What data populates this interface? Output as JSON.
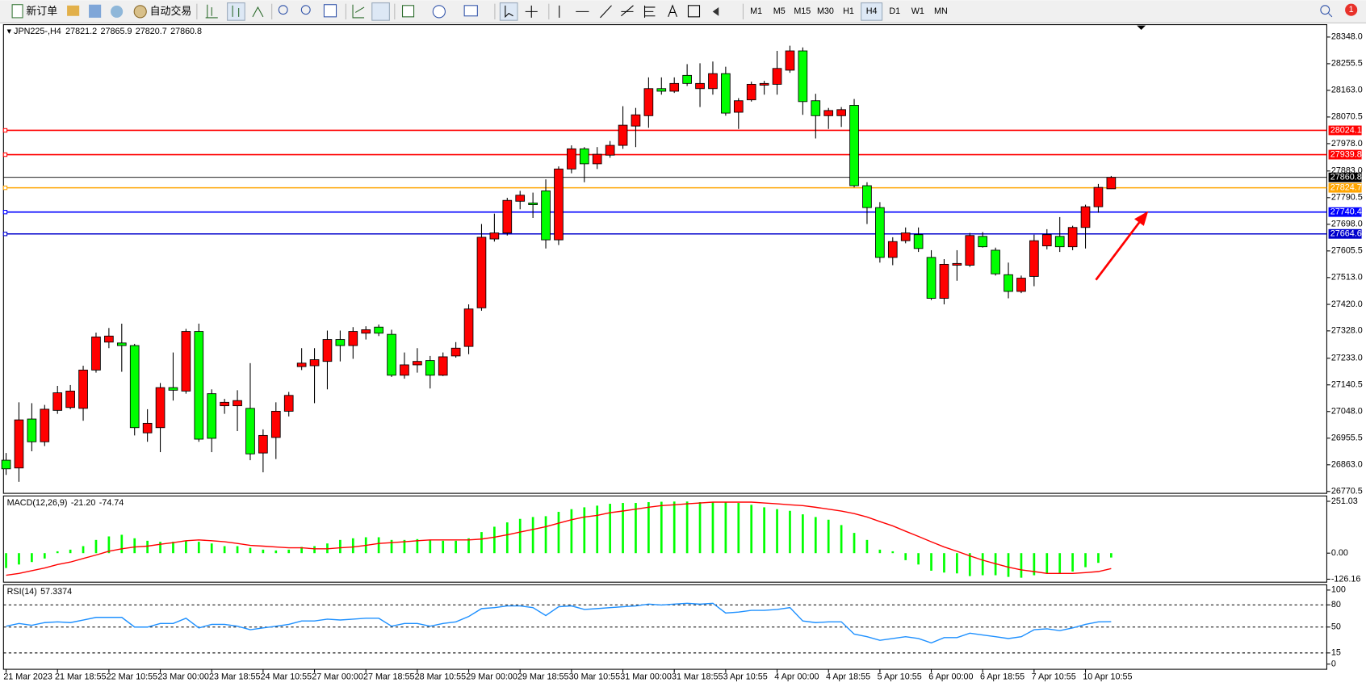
{
  "toolbar": {
    "new_order": "新订单",
    "auto_trading": "自动交易",
    "timeframes": [
      "M1",
      "M5",
      "M15",
      "M30",
      "H1",
      "H4",
      "D1",
      "W1",
      "MN"
    ],
    "notifications": 1
  },
  "chart_data": [
    {
      "type": "candlestick",
      "title": "JPN225-,H4",
      "categories": [
        "21 Mar 2023",
        null,
        null,
        null,
        "21 Mar 18:55",
        null,
        null,
        null,
        "22 Mar 10:55",
        null,
        null,
        null,
        "23 Mar 00:00",
        null,
        null,
        null,
        "23 Mar 18:55",
        null,
        null,
        null,
        "24 Mar 10:55",
        null,
        null,
        null,
        "27 Mar 00:00",
        null,
        null,
        null,
        "27 Mar 18:55",
        null,
        null,
        null,
        "28 Mar 10:55",
        null,
        null,
        null,
        "29 Mar 00:00",
        null,
        null,
        null,
        "29 Mar 18:55",
        null,
        null,
        null,
        "30 Mar 10:55",
        null,
        null,
        null,
        "31 Mar 00:00",
        null,
        null,
        null,
        "31 Mar 18:55",
        null,
        null,
        null,
        "3 Apr 10:55",
        null,
        null,
        null,
        "4 Apr 00:00",
        null,
        null,
        null,
        "4 Apr 18:55",
        null,
        null,
        null,
        "5 Apr 10:55",
        null,
        null,
        null,
        "6 Apr 00:00",
        null,
        null,
        null,
        "6 Apr 18:55",
        null,
        null,
        null,
        "7 Apr 10:55",
        null,
        null,
        null,
        "10 Apr 10:55",
        null,
        null
      ],
      "open": [
        26879,
        26852,
        27022,
        26943,
        27052,
        27062,
        27059,
        27192,
        27289,
        27286,
        27277,
        26974,
        26992,
        27131,
        27119,
        27326,
        27110,
        27068,
        27068,
        27059,
        26904,
        26958,
        27049,
        27204,
        27207,
        27222,
        27298,
        27277,
        27320,
        27341,
        27316,
        27174,
        27210,
        27225,
        27174,
        27241,
        27274,
        27408,
        27647,
        27668,
        27778,
        27772,
        27814,
        27644,
        27890,
        27960,
        27908,
        27938,
        27972,
        28039,
        28075,
        28169,
        28160,
        28215,
        28169,
        28169,
        28221,
        28087,
        28130,
        28181,
        28184,
        28233,
        28300,
        28127,
        28075,
        28075,
        28111,
        27832,
        27756,
        27583,
        27641,
        27662,
        27583,
        27441,
        27556,
        27556,
        27656,
        27608,
        27523,
        27465,
        27517,
        27623,
        27656,
        27620,
        27687,
        27759,
        27821.2
      ],
      "high": [
        26904,
        27080,
        27077,
        27071,
        27137,
        27140,
        27207,
        27322,
        27338,
        27353,
        27283,
        27056,
        27147,
        27253,
        27335,
        27353,
        27125,
        27092,
        27122,
        27216,
        26986,
        27080,
        27116,
        27268,
        27268,
        27329,
        27329,
        27341,
        27344,
        27350,
        27332,
        27253,
        27268,
        27241,
        27253,
        27289,
        27420,
        27699,
        27735,
        27790,
        27814,
        27808,
        27854,
        27899,
        27972,
        27966,
        27966,
        27987,
        28108,
        28102,
        28208,
        28208,
        28208,
        28254,
        28257,
        28263,
        28245,
        28136,
        28193,
        28196,
        28300,
        28318,
        28312,
        28151,
        28102,
        28105,
        28133,
        27844,
        27775,
        27653,
        27687,
        27687,
        27608,
        27577,
        27608,
        27668,
        27671,
        27617,
        27565,
        27520,
        27662,
        27681,
        27723,
        27693,
        27766,
        27838,
        27865.9
      ],
      "low": [
        26828,
        26804,
        26910,
        26928,
        27040,
        27056,
        27016,
        27183,
        27268,
        27186,
        26965,
        26943,
        26907,
        27086,
        27110,
        26943,
        26907,
        27040,
        26980,
        26879,
        26837,
        26883,
        27031,
        27192,
        27077,
        27125,
        27222,
        27231,
        27298,
        27310,
        27168,
        27162,
        27183,
        27128,
        27171,
        27235,
        27247,
        27398,
        27638,
        27659,
        27750,
        27720,
        27614,
        27626,
        27875,
        27844,
        27890,
        27929,
        27960,
        27966,
        28033,
        28148,
        28154,
        28178,
        28105,
        28148,
        28075,
        28029,
        28124,
        28148,
        28148,
        28224,
        28078,
        27996,
        28029,
        28036,
        27826,
        27699,
        27565,
        27556,
        27632,
        27602,
        27435,
        27420,
        27502,
        27550,
        27617,
        27520,
        27441,
        27459,
        27483,
        27611,
        27602,
        27608,
        27614,
        27738,
        27820.7
      ],
      "close": [
        26849,
        27019,
        26943,
        27056,
        27113,
        27119,
        27192,
        27307,
        27310,
        27277,
        26992,
        27007,
        27131,
        27122,
        27326,
        26952,
        26955,
        27080,
        27086,
        26901,
        26965,
        27049,
        27104,
        27216,
        27228,
        27298,
        27277,
        27326,
        27332,
        27320,
        27174,
        27210,
        27222,
        27174,
        27238,
        27268,
        27404,
        27653,
        27668,
        27781,
        27799,
        27766,
        27644,
        27890,
        27960,
        27908,
        27941,
        27972,
        28042,
        28078,
        28169,
        28160,
        28187,
        28187,
        28187,
        28221,
        28084,
        28127,
        28184,
        28187,
        28239,
        28300,
        28124,
        28075,
        28093,
        28096,
        27832,
        27756,
        27583,
        27638,
        27668,
        27614,
        27441,
        27559,
        27562,
        27659,
        27620,
        27526,
        27465,
        27511,
        27641,
        27662,
        27620,
        27687,
        27759,
        27826,
        27860.8
      ],
      "up_color": "#ff0000",
      "down_color": "#00ff00",
      "hlines": [
        {
          "value": 28024.1,
          "color": "#ff0000"
        },
        {
          "value": 27939.8,
          "color": "#ff0000"
        },
        {
          "value": 27824.7,
          "color": "#ffa500"
        },
        {
          "value": 27740.4,
          "color": "#0000ff"
        },
        {
          "value": 27664.6,
          "color": "#0000cd"
        }
      ],
      "ylim": [
        26764,
        28391
      ],
      "yticks": [
        {
          "value": 28348,
          "label": "28348.0"
        },
        28255.5,
        {
          "value": 28163,
          "label": "28163.0"
        },
        28070.5,
        {
          "value": 27978,
          "label": "27978.0"
        },
        {
          "value": 27883,
          "label": "27883.0"
        },
        27790.5,
        {
          "value": 27698,
          "label": "27698.0"
        },
        27605.5,
        {
          "value": 27513,
          "label": "27513.0"
        },
        {
          "value": 27420,
          "label": "27420.0"
        },
        {
          "value": 27328,
          "label": "27328.0"
        },
        {
          "value": 27233,
          "label": "27233.0"
        },
        27140.5,
        {
          "value": 27048,
          "label": "27048.0"
        },
        26955.5,
        {
          "value": 26863,
          "label": "26863.0"
        },
        26770.5
      ]
    },
    {
      "type": "macd",
      "title": "MACD(12,26,9)",
      "current_labels": [
        "-21.20",
        "-74.74"
      ],
      "series": [
        {
          "color": "#00ff00",
          "values": [
            -72,
            -55,
            -43,
            -26,
            9,
            17,
            34,
            64,
            81,
            89,
            72,
            60,
            55,
            55,
            60,
            55,
            47,
            34,
            34,
            26,
            17,
            13,
            17,
            30,
            34,
            47,
            64,
            72,
            77,
            77,
            64,
            64,
            68,
            64,
            60,
            60,
            72,
            102,
            128,
            149,
            166,
            175,
            179,
            200,
            213,
            222,
            230,
            239,
            243,
            243,
            247,
            249,
            250,
            250,
            247,
            247,
            247,
            243,
            234,
            222,
            213,
            205,
            188,
            175,
            162,
            136,
            98,
            64,
            17,
            9,
            -34,
            -55,
            -85,
            -94,
            -98,
            -111,
            -107,
            -107,
            -115,
            -119,
            -107,
            -98,
            -98,
            -89,
            -68,
            -47,
            -21.2
          ]
        },
        {
          "color": "#ff0000",
          "values": [
            -107,
            -98,
            -85,
            -72,
            -55,
            -43,
            -26,
            -9,
            9,
            21,
            30,
            34,
            43,
            51,
            60,
            64,
            60,
            55,
            47,
            38,
            34,
            30,
            26,
            26,
            21,
            21,
            26,
            30,
            38,
            47,
            51,
            55,
            60,
            64,
            64,
            64,
            64,
            68,
            77,
            89,
            102,
            115,
            128,
            145,
            162,
            175,
            183,
            196,
            204,
            213,
            222,
            230,
            234,
            239,
            243,
            247,
            247,
            247,
            247,
            243,
            239,
            234,
            230,
            222,
            213,
            204,
            192,
            175,
            153,
            132,
            106,
            81,
            55,
            30,
            9,
            -13,
            -34,
            -51,
            -68,
            -81,
            -89,
            -98,
            -98,
            -98,
            -94,
            -89,
            -74.74
          ]
        }
      ],
      "ylim": [
        -140.6,
        277
      ],
      "yticks": [
        251.03,
        {
          "value": 0,
          "label": "0.00"
        },
        -126.16
      ]
    },
    {
      "type": "line",
      "title": "RSI(14)",
      "series": [
        {
          "color": "#1e90ff",
          "values": [
            51.2,
            54.8,
            52.4,
            56.0,
            57.1,
            56.0,
            59.5,
            63.1,
            63.1,
            63.1,
            50.0,
            50.0,
            54.8,
            54.8,
            61.9,
            48.8,
            53.6,
            53.6,
            51.2,
            46.4,
            48.8,
            51.2,
            53.6,
            58.3,
            58.3,
            60.7,
            59.5,
            60.7,
            61.9,
            61.9,
            51.2,
            54.8,
            54.8,
            51.2,
            54.8,
            57.1,
            64.3,
            75.0,
            76.2,
            78.6,
            78.6,
            76.2,
            65.5,
            77.4,
            78.6,
            73.8,
            75.0,
            76.2,
            77.4,
            78.6,
            81.0,
            79.8,
            81.0,
            82.1,
            81.0,
            82.1,
            69.0,
            70.2,
            72.6,
            72.6,
            73.8,
            76.2,
            58.3,
            56.0,
            57.1,
            57.1,
            40.5,
            36.9,
            32.1,
            34.5,
            36.9,
            34.5,
            28.6,
            35.7,
            35.7,
            41.7,
            39.3,
            36.9,
            34.5,
            36.9,
            46.4,
            47.6,
            45.2,
            48.8,
            53.6,
            57.1,
            57.3374
          ]
        }
      ],
      "ylim": [
        -7.1,
        107.1
      ],
      "yticks": [
        100,
        80,
        50,
        15,
        0
      ],
      "grid": "dashed"
    }
  ]
}
